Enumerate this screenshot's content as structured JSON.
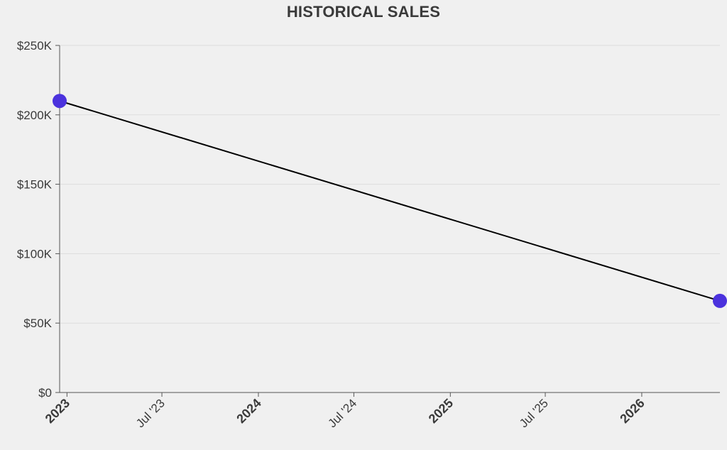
{
  "chart_data": {
    "type": "line",
    "title": "HISTORICAL SALES",
    "xlabel": "",
    "ylabel": "",
    "x_axis_type": "date",
    "xlim": [
      "2022-12-18",
      "2026-05-30"
    ],
    "ylim": [
      0,
      250000
    ],
    "y_ticks": [
      {
        "value": 0,
        "label": "$0"
      },
      {
        "value": 50000,
        "label": "$50K"
      },
      {
        "value": 100000,
        "label": "$100K"
      },
      {
        "value": 150000,
        "label": "$150K"
      },
      {
        "value": 200000,
        "label": "$200K"
      },
      {
        "value": 250000,
        "label": "$250K"
      }
    ],
    "x_ticks": [
      {
        "date": "2023-01-01",
        "label": "2023",
        "major": true
      },
      {
        "date": "2023-07-01",
        "label": "Jul '23",
        "major": false
      },
      {
        "date": "2024-01-01",
        "label": "2024",
        "major": true
      },
      {
        "date": "2024-07-01",
        "label": "Jul '24",
        "major": false
      },
      {
        "date": "2025-01-01",
        "label": "2025",
        "major": true
      },
      {
        "date": "2025-07-01",
        "label": "Jul '25",
        "major": false
      },
      {
        "date": "2026-01-01",
        "label": "2026",
        "major": true
      }
    ],
    "grid": true,
    "series": [
      {
        "points": [
          {
            "x": "2022-12-18",
            "y": 210000
          },
          {
            "x": "2026-05-30",
            "y": 66000
          }
        ]
      }
    ],
    "line_color": "#000000",
    "marker_color": "#4b32dd"
  }
}
